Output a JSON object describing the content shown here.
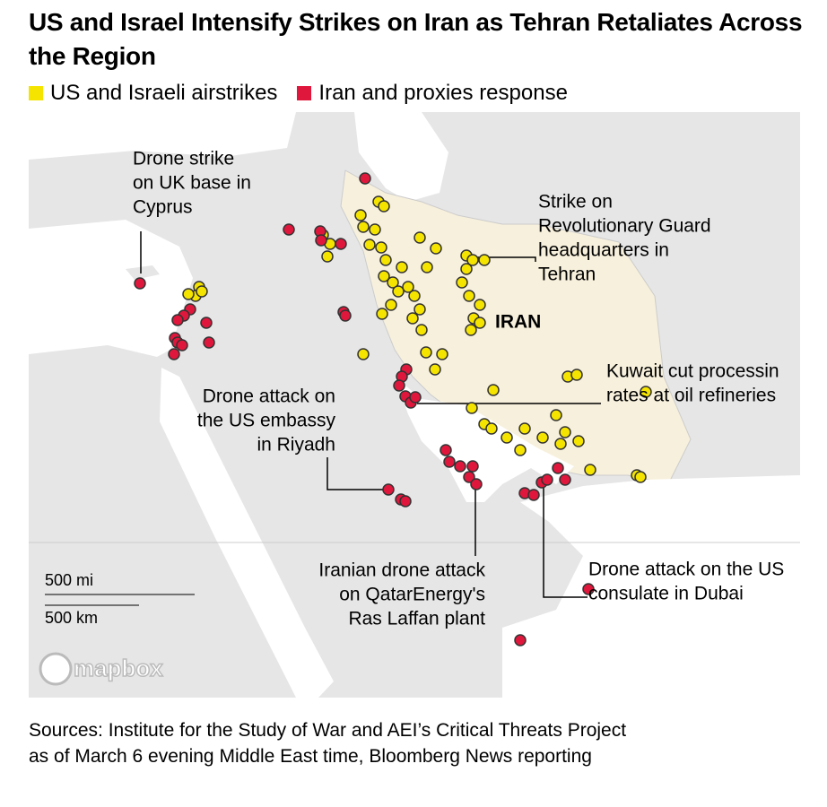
{
  "header": {
    "title": "US and Israel Intensify Strikes on Iran as Tehran Retaliates Across the Region"
  },
  "legend": {
    "items": [
      {
        "label": "US and Israeli airstrikes",
        "color": "#f5e400"
      },
      {
        "label": "Iran and proxies response",
        "color": "#e0173c"
      }
    ]
  },
  "map": {
    "country_label": "IRAN",
    "annotations": [
      {
        "lines": [
          "Drone strike",
          "on UK base in",
          "Cyprus"
        ]
      },
      {
        "lines": [
          "Strike on",
          "Revolutionary Guard",
          "headquarters in",
          "Tehran"
        ]
      },
      {
        "lines": [
          "Kuwait cut processin",
          "rates at oil refineries"
        ]
      },
      {
        "lines": [
          "Drone attack on",
          "the US embassy",
          "in Riyadh"
        ]
      },
      {
        "lines": [
          "Iranian drone attack",
          "on QatarEnergy's",
          "Ras Laffan plant"
        ]
      },
      {
        "lines": [
          "Drone attack on the US",
          "consulate in Dubai"
        ]
      }
    ],
    "scale": {
      "miles": "500 mi",
      "km": "500 km"
    },
    "attribution": "mapbox"
  },
  "footer": {
    "sources": "Sources: Institute for the Study of War and AEI’s Critical Threats Project as of March 6 evening Middle East time, Bloomberg News reporting"
  }
}
